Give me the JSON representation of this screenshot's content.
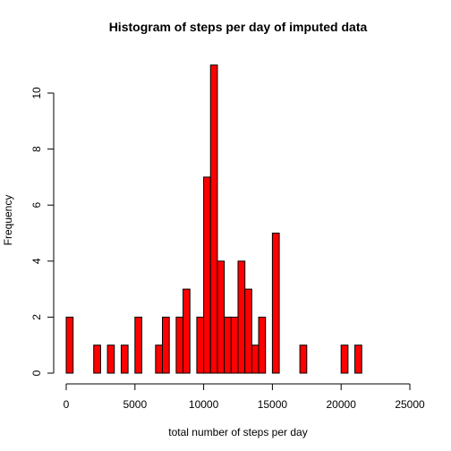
{
  "chart_data": {
    "type": "bar",
    "title": "Histogram of steps per day of imputed data",
    "xlabel": "total number of steps per day",
    "ylabel": "Frequency",
    "bin_width": 500,
    "bin_starts": [
      0,
      500,
      1000,
      1500,
      2000,
      2500,
      3000,
      3500,
      4000,
      4500,
      5000,
      5500,
      6000,
      6500,
      7000,
      7500,
      8000,
      8500,
      9000,
      9500,
      10000,
      10500,
      11000,
      11500,
      12000,
      12500,
      13000,
      13500,
      14000,
      14500,
      15000,
      15500,
      16000,
      16500,
      17000,
      17500,
      18000,
      18500,
      19000,
      19500,
      20000,
      20500,
      21000,
      21500,
      22000,
      22500,
      23000,
      23500,
      24000,
      24500
    ],
    "values": [
      2,
      0,
      0,
      0,
      1,
      0,
      1,
      0,
      1,
      0,
      2,
      0,
      0,
      1,
      2,
      0,
      2,
      3,
      0,
      2,
      7,
      11,
      4,
      2,
      2,
      4,
      3,
      1,
      2,
      0,
      5,
      0,
      0,
      0,
      1,
      0,
      0,
      0,
      0,
      0,
      1,
      0,
      1,
      0,
      0,
      0,
      0,
      0,
      0,
      0
    ],
    "xlim": [
      0,
      25000
    ],
    "ylim": [
      0,
      11
    ],
    "xticks": [
      0,
      5000,
      10000,
      15000,
      20000,
      25000
    ],
    "yticks": [
      0,
      2,
      4,
      6,
      8,
      10
    ],
    "bar_color": "#ff0000",
    "edge_color": "#000000",
    "grid": false
  }
}
